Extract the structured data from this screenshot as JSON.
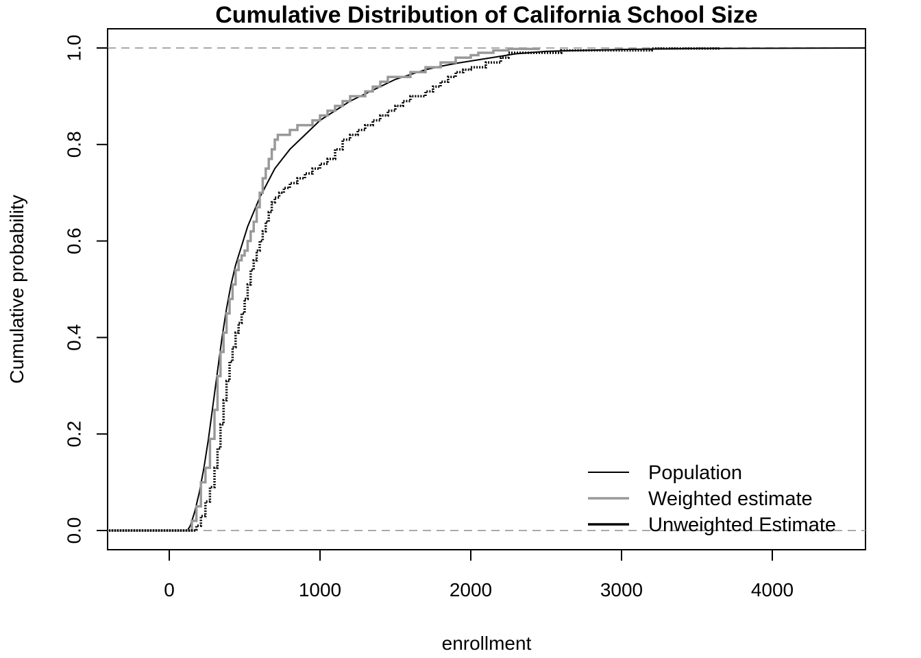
{
  "chart_data": {
    "type": "line",
    "title": "Cumulative Distribution of California School Size",
    "xlabel": "enrollment",
    "ylabel": "Cumulative probability",
    "xlim": [
      -400,
      4620
    ],
    "ylim": [
      -0.04,
      1.04
    ],
    "xticks": [
      0,
      1000,
      2000,
      3000,
      4000
    ],
    "yticks": [
      0.0,
      0.2,
      0.4,
      0.6,
      0.8,
      1.0
    ],
    "xtick_labels": [
      "0",
      "1000",
      "2000",
      "3000",
      "4000"
    ],
    "ytick_labels": [
      "0.0",
      "0.2",
      "0.4",
      "0.6",
      "0.8",
      "1.0"
    ],
    "reference_lines": [
      0.0,
      1.0
    ],
    "legend": {
      "position": "bottom-right",
      "entries": [
        "Population",
        "Weighted estimate",
        "Unweighted Estimate"
      ]
    },
    "series": [
      {
        "name": "Population",
        "color": "#000000",
        "style": "thin-line",
        "x": [
          -400,
          120,
          140,
          170,
          200,
          230,
          260,
          290,
          320,
          350,
          380,
          410,
          440,
          480,
          520,
          560,
          600,
          650,
          700,
          750,
          800,
          900,
          1000,
          1100,
          1200,
          1300,
          1400,
          1500,
          1600,
          1700,
          1800,
          1900,
          2000,
          2100,
          2200,
          2300,
          2500,
          3000,
          3500,
          4620
        ],
        "values": [
          0.0,
          0.0,
          0.01,
          0.04,
          0.08,
          0.13,
          0.19,
          0.26,
          0.33,
          0.4,
          0.46,
          0.51,
          0.55,
          0.59,
          0.63,
          0.66,
          0.69,
          0.72,
          0.75,
          0.77,
          0.79,
          0.82,
          0.85,
          0.87,
          0.89,
          0.905,
          0.92,
          0.935,
          0.945,
          0.955,
          0.962,
          0.968,
          0.973,
          0.978,
          0.983,
          0.988,
          0.993,
          0.997,
          0.999,
          1.0
        ]
      },
      {
        "name": "Weighted estimate",
        "color": "#999999",
        "style": "step",
        "x": [
          -400,
          130,
          150,
          180,
          210,
          240,
          270,
          300,
          320,
          340,
          360,
          380,
          400,
          420,
          440,
          460,
          480,
          500,
          520,
          540,
          560,
          580,
          600,
          620,
          640,
          660,
          680,
          700,
          720,
          760,
          800,
          850,
          900,
          950,
          1000,
          1050,
          1100,
          1150,
          1200,
          1300,
          1350,
          1400,
          1450,
          1500,
          1600,
          1700,
          1800,
          1900,
          2000,
          2050,
          2150,
          2250,
          2450
        ],
        "values": [
          0.0,
          0.0,
          0.02,
          0.05,
          0.1,
          0.13,
          0.19,
          0.25,
          0.32,
          0.37,
          0.41,
          0.45,
          0.48,
          0.51,
          0.54,
          0.56,
          0.57,
          0.58,
          0.6,
          0.62,
          0.64,
          0.67,
          0.7,
          0.73,
          0.75,
          0.77,
          0.79,
          0.81,
          0.82,
          0.82,
          0.83,
          0.84,
          0.84,
          0.85,
          0.86,
          0.87,
          0.88,
          0.89,
          0.9,
          0.91,
          0.92,
          0.93,
          0.94,
          0.94,
          0.95,
          0.96,
          0.97,
          0.98,
          0.985,
          0.99,
          0.995,
          0.998,
          1.0
        ]
      },
      {
        "name": "Unweighted Estimate",
        "color": "#000000",
        "style": "step-thick",
        "x": [
          -400,
          150,
          180,
          210,
          240,
          270,
          300,
          320,
          340,
          360,
          380,
          400,
          420,
          440,
          460,
          480,
          500,
          520,
          540,
          560,
          580,
          600,
          620,
          640,
          660,
          680,
          700,
          730,
          760,
          800,
          850,
          900,
          950,
          1000,
          1050,
          1100,
          1150,
          1200,
          1250,
          1300,
          1350,
          1400,
          1450,
          1500,
          1550,
          1600,
          1650,
          1700,
          1750,
          1800,
          1850,
          1900,
          1950,
          2000,
          2100,
          2200,
          2250,
          2300,
          2600,
          3150,
          3200,
          3650
        ],
        "values": [
          0.0,
          0.0,
          0.01,
          0.03,
          0.06,
          0.09,
          0.13,
          0.17,
          0.22,
          0.27,
          0.31,
          0.35,
          0.38,
          0.41,
          0.43,
          0.45,
          0.48,
          0.51,
          0.54,
          0.56,
          0.58,
          0.6,
          0.62,
          0.64,
          0.66,
          0.68,
          0.69,
          0.7,
          0.71,
          0.72,
          0.73,
          0.74,
          0.75,
          0.76,
          0.77,
          0.79,
          0.81,
          0.82,
          0.83,
          0.84,
          0.85,
          0.86,
          0.87,
          0.88,
          0.89,
          0.9,
          0.9,
          0.91,
          0.92,
          0.93,
          0.94,
          0.95,
          0.955,
          0.96,
          0.97,
          0.98,
          0.99,
          0.99,
          0.995,
          0.995,
          0.999,
          1.0
        ]
      }
    ]
  }
}
